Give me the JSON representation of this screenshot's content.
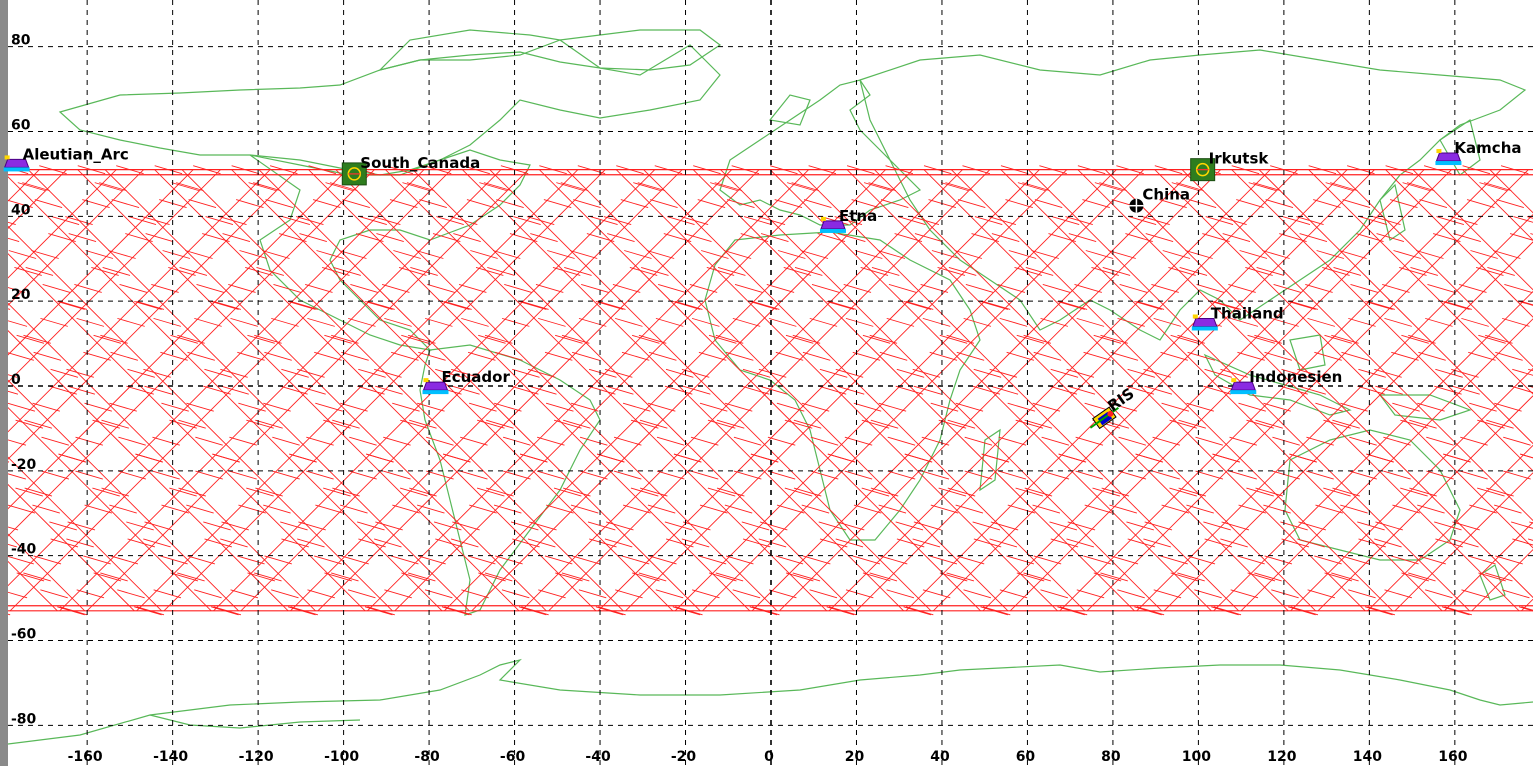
{
  "map": {
    "projection": "equirectangular",
    "lon_range": [
      -180,
      180
    ],
    "lat_range": [
      -90,
      90
    ],
    "grid": true,
    "colors": {
      "background": "#ffffff",
      "grid": "#000000",
      "coastline": "#59b859",
      "swath": "#ff2020",
      "left_border": "#8a8a8a"
    },
    "lon_ticks": [
      {
        "value": -160,
        "label": "-160"
      },
      {
        "value": -140,
        "label": "-140"
      },
      {
        "value": -120,
        "label": "-120"
      },
      {
        "value": -100,
        "label": "-100"
      },
      {
        "value": -80,
        "label": "-80"
      },
      {
        "value": -60,
        "label": "-60"
      },
      {
        "value": -40,
        "label": "-40"
      },
      {
        "value": -20,
        "label": "-20"
      },
      {
        "value": 0,
        "label": "0"
      },
      {
        "value": 20,
        "label": "20"
      },
      {
        "value": 40,
        "label": "40"
      },
      {
        "value": 60,
        "label": "60"
      },
      {
        "value": 80,
        "label": "80"
      },
      {
        "value": 100,
        "label": "100"
      },
      {
        "value": 120,
        "label": "120"
      },
      {
        "value": 140,
        "label": "140"
      },
      {
        "value": 160,
        "label": "160"
      }
    ],
    "lat_ticks": [
      {
        "value": 80,
        "label": "80"
      },
      {
        "value": 60,
        "label": "60"
      },
      {
        "value": 40,
        "label": "40"
      },
      {
        "value": 20,
        "label": "20"
      },
      {
        "value": 0,
        "label": "0"
      },
      {
        "value": -20,
        "label": "-20"
      },
      {
        "value": -40,
        "label": "-40"
      },
      {
        "value": -60,
        "label": "-60"
      },
      {
        "value": -80,
        "label": "-80"
      }
    ],
    "coverage": {
      "lat_extent": [
        -53,
        51
      ],
      "ascending_track_start_lons": [
        -177,
        -159,
        -141,
        -123,
        -105,
        -87,
        -69,
        -51,
        -33,
        -15,
        3,
        21,
        39,
        57,
        75,
        93,
        111,
        129,
        147,
        165
      ],
      "descending_track_start_lons": [
        -168,
        -150,
        -132,
        -114,
        -96,
        -78,
        -60,
        -42,
        -24,
        -6,
        12,
        30,
        48,
        66,
        84,
        102,
        120,
        138,
        156,
        174
      ],
      "swath_half_width_deg": 3.2
    },
    "sites": [
      {
        "id": "aleutian",
        "label": "Aleutian_Arc",
        "lon": -176.5,
        "lat": 52,
        "marker": "vehicle"
      },
      {
        "id": "south-canada",
        "label": "South_Canada",
        "lon": -97.5,
        "lat": 50,
        "marker": "green-square"
      },
      {
        "id": "etna",
        "label": "Etna",
        "lon": 14.5,
        "lat": 37.5,
        "marker": "vehicle"
      },
      {
        "id": "china",
        "label": "China",
        "lon": 85.5,
        "lat": 42.5,
        "marker": "globe"
      },
      {
        "id": "irkutsk",
        "label": "Irkutsk",
        "lon": 101,
        "lat": 51,
        "marker": "green-square"
      },
      {
        "id": "kamchatka",
        "label": "Kamcha",
        "lon": 158.5,
        "lat": 53.5,
        "marker": "vehicle"
      },
      {
        "id": "thailand",
        "label": "Thailand",
        "lon": 101.5,
        "lat": 14.5,
        "marker": "vehicle"
      },
      {
        "id": "indonesia",
        "label": "Indonesien",
        "lon": 110.5,
        "lat": -0.5,
        "marker": "vehicle"
      },
      {
        "id": "ecuador",
        "label": "Ecuador",
        "lon": -78.5,
        "lat": -0.5,
        "marker": "vehicle"
      },
      {
        "id": "satellite",
        "label": "RIS",
        "lon": 78,
        "lat": -7.5,
        "marker": "satellite"
      }
    ]
  }
}
